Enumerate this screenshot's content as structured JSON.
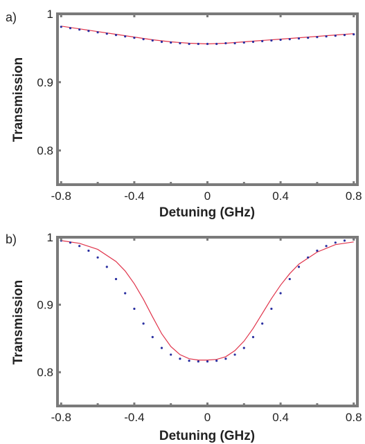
{
  "colors": {
    "frame": "#7a7a7a",
    "fit_line": "#e0334a",
    "data_points": "#2a2fa0"
  },
  "chart_data": [
    {
      "type": "line",
      "panel_label": "a)",
      "xlabel": "Detuning (GHz)",
      "ylabel": "Transmission",
      "xlim": [
        -0.82,
        0.82
      ],
      "ylim": [
        0.75,
        1.0
      ],
      "xticks": [
        -0.8,
        -0.4,
        0,
        0.4,
        0.8
      ],
      "xtick_labels": [
        "-0.8",
        "-0.4",
        "0",
        "0.4",
        "0.8"
      ],
      "yticks": [
        0.8,
        0.9,
        1.0
      ],
      "ytick_labels": [
        "0.8",
        "0.9",
        "1"
      ],
      "grid": false,
      "series": [
        {
          "kind": "points",
          "x": [
            -0.8,
            -0.75,
            -0.7,
            -0.65,
            -0.6,
            -0.55,
            -0.5,
            -0.45,
            -0.4,
            -0.35,
            -0.3,
            -0.25,
            -0.2,
            -0.15,
            -0.1,
            -0.05,
            0,
            0.05,
            0.1,
            0.15,
            0.2,
            0.25,
            0.3,
            0.35,
            0.4,
            0.45,
            0.5,
            0.55,
            0.6,
            0.65,
            0.7,
            0.75,
            0.8
          ],
          "y": [
            0.981,
            0.979,
            0.977,
            0.975,
            0.973,
            0.971,
            0.969,
            0.967,
            0.965,
            0.963,
            0.961,
            0.959,
            0.958,
            0.957,
            0.956,
            0.956,
            0.956,
            0.956,
            0.957,
            0.957,
            0.958,
            0.959,
            0.96,
            0.961,
            0.962,
            0.963,
            0.964,
            0.965,
            0.966,
            0.967,
            0.968,
            0.969,
            0.97
          ]
        },
        {
          "kind": "line",
          "x": [
            -0.8,
            -0.7,
            -0.6,
            -0.5,
            -0.4,
            -0.3,
            -0.2,
            -0.1,
            0,
            0.1,
            0.2,
            0.3,
            0.4,
            0.5,
            0.6,
            0.7,
            0.8
          ],
          "y": [
            0.982,
            0.978,
            0.974,
            0.97,
            0.966,
            0.962,
            0.959,
            0.957,
            0.956,
            0.957,
            0.959,
            0.961,
            0.963,
            0.965,
            0.967,
            0.969,
            0.971
          ]
        }
      ]
    },
    {
      "type": "line",
      "panel_label": "b)",
      "xlabel": "Detuning (GHz)",
      "ylabel": "Transmission",
      "xlim": [
        -0.82,
        0.82
      ],
      "ylim": [
        0.75,
        1.0
      ],
      "xticks": [
        -0.8,
        -0.4,
        0,
        0.4,
        0.8
      ],
      "xtick_labels": [
        "-0.8",
        "-0.4",
        "0",
        "0.4",
        "0.8"
      ],
      "yticks": [
        0.8,
        0.9,
        1.0
      ],
      "ytick_labels": [
        "0.8",
        "0.9",
        "1"
      ],
      "grid": false,
      "series": [
        {
          "kind": "points",
          "x": [
            -0.8,
            -0.75,
            -0.7,
            -0.65,
            -0.6,
            -0.55,
            -0.5,
            -0.45,
            -0.4,
            -0.35,
            -0.3,
            -0.25,
            -0.2,
            -0.15,
            -0.1,
            -0.05,
            0,
            0.05,
            0.1,
            0.15,
            0.2,
            0.25,
            0.3,
            0.35,
            0.4,
            0.45,
            0.5,
            0.55,
            0.6,
            0.65,
            0.7,
            0.75,
            0.8
          ],
          "y": [
            0.995,
            0.992,
            0.987,
            0.98,
            0.97,
            0.956,
            0.938,
            0.917,
            0.894,
            0.872,
            0.852,
            0.836,
            0.826,
            0.82,
            0.817,
            0.816,
            0.816,
            0.817,
            0.82,
            0.826,
            0.836,
            0.852,
            0.872,
            0.894,
            0.917,
            0.938,
            0.956,
            0.97,
            0.98,
            0.987,
            0.992,
            0.995,
            0.997
          ]
        },
        {
          "kind": "line",
          "x": [
            -0.8,
            -0.7,
            -0.6,
            -0.5,
            -0.45,
            -0.4,
            -0.35,
            -0.3,
            -0.25,
            -0.2,
            -0.15,
            -0.1,
            -0.05,
            0,
            0.05,
            0.1,
            0.15,
            0.2,
            0.25,
            0.3,
            0.35,
            0.4,
            0.45,
            0.5,
            0.6,
            0.7,
            0.8
          ],
          "y": [
            0.995,
            0.991,
            0.982,
            0.964,
            0.95,
            0.931,
            0.908,
            0.882,
            0.857,
            0.838,
            0.826,
            0.82,
            0.818,
            0.818,
            0.819,
            0.823,
            0.832,
            0.846,
            0.865,
            0.887,
            0.909,
            0.929,
            0.946,
            0.96,
            0.978,
            0.989,
            0.993
          ]
        }
      ]
    }
  ]
}
